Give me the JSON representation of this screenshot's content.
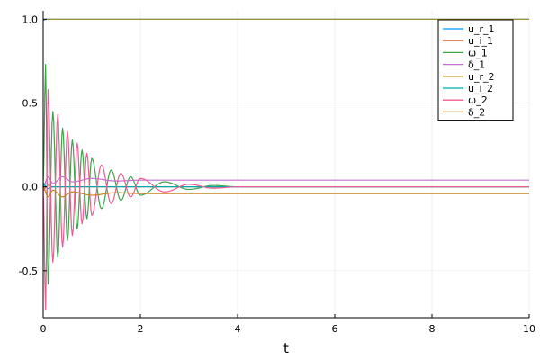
{
  "chart_data": {
    "type": "line",
    "title": "",
    "xlabel": "t",
    "ylabel": "",
    "xlim": [
      0,
      10
    ],
    "ylim": [
      -0.78,
      1.05
    ],
    "xticks": [
      0,
      2,
      4,
      6,
      8,
      10
    ],
    "xtick_labels": [
      "0",
      "2",
      "4",
      "6",
      "8",
      "10"
    ],
    "yticks": [
      -0.5,
      0.0,
      0.5,
      1.0
    ],
    "ytick_labels": [
      "-0.5",
      "0.0",
      "0.5",
      "1.0"
    ],
    "grid": true,
    "legend_position": "top-right",
    "series": [
      {
        "name": "u_r_1",
        "color": "#009AFA",
        "x": [
          0,
          0.02,
          0.05,
          0.1,
          0.5,
          1,
          10
        ],
        "y": [
          1.0,
          0.995,
          1.0,
          1.0,
          1.0,
          1.0,
          1.0
        ]
      },
      {
        "name": "u_i_1",
        "color": "#E26F46",
        "x": [
          0,
          0.02,
          0.05,
          0.1,
          0.2,
          0.5,
          1,
          10
        ],
        "y": [
          0.0,
          -0.02,
          0.0,
          0.01,
          0.0,
          0.0,
          0.0,
          0.0
        ]
      },
      {
        "name": "ω_1",
        "color": "#3EA44E",
        "x": [
          0,
          0.05,
          0.1,
          0.2,
          0.3,
          0.4,
          0.5,
          0.6,
          0.7,
          0.8,
          0.9,
          1.0,
          1.2,
          1.4,
          1.6,
          1.8,
          2.0,
          2.5,
          3.0,
          3.5,
          4.0,
          10
        ],
        "y": [
          0.0,
          0.73,
          -0.58,
          0.45,
          -0.42,
          0.35,
          -0.32,
          0.28,
          -0.25,
          0.22,
          -0.19,
          0.17,
          -0.13,
          0.1,
          -0.08,
          0.06,
          -0.05,
          0.03,
          -0.015,
          0.008,
          0.0,
          0.0
        ]
      },
      {
        "name": "δ_1",
        "color": "#C271D2",
        "x": [
          0,
          0.1,
          0.2,
          0.4,
          0.6,
          1.0,
          1.5,
          2.0,
          10
        ],
        "y": [
          0.0,
          0.06,
          0.02,
          0.06,
          0.03,
          0.05,
          0.035,
          0.04,
          0.04
        ]
      },
      {
        "name": "u_r_2",
        "color": "#AC8D18",
        "x": [
          0,
          0.02,
          0.05,
          0.1,
          0.5,
          1,
          10
        ],
        "y": [
          1.0,
          0.997,
          1.0,
          1.0,
          1.0,
          1.0,
          1.0
        ]
      },
      {
        "name": "u_i_2",
        "color": "#00A9AD",
        "x": [
          0,
          0.02,
          0.05,
          0.1,
          0.2,
          0.5,
          1,
          10
        ],
        "y": [
          0.0,
          0.02,
          0.0,
          -0.01,
          0.0,
          0.0,
          0.0,
          0.0
        ]
      },
      {
        "name": "ω_2",
        "color": "#ED5D92",
        "x": [
          0,
          0.05,
          0.1,
          0.2,
          0.3,
          0.4,
          0.5,
          0.6,
          0.7,
          0.8,
          0.9,
          1.0,
          1.2,
          1.4,
          1.6,
          1.8,
          2.0,
          2.5,
          3.0,
          3.5,
          4.0,
          10
        ],
        "y": [
          0.0,
          -0.73,
          0.58,
          -0.45,
          0.43,
          -0.36,
          0.33,
          -0.29,
          0.26,
          -0.22,
          0.2,
          -0.17,
          0.13,
          -0.1,
          0.08,
          -0.06,
          0.05,
          -0.03,
          0.015,
          -0.008,
          0.0,
          0.0
        ]
      },
      {
        "name": "δ_2",
        "color": "#C68225",
        "x": [
          0,
          0.1,
          0.2,
          0.4,
          0.6,
          1.0,
          1.5,
          2.0,
          10
        ],
        "y": [
          0.0,
          -0.06,
          -0.02,
          -0.06,
          -0.03,
          -0.05,
          -0.035,
          -0.04,
          -0.04
        ]
      }
    ]
  }
}
